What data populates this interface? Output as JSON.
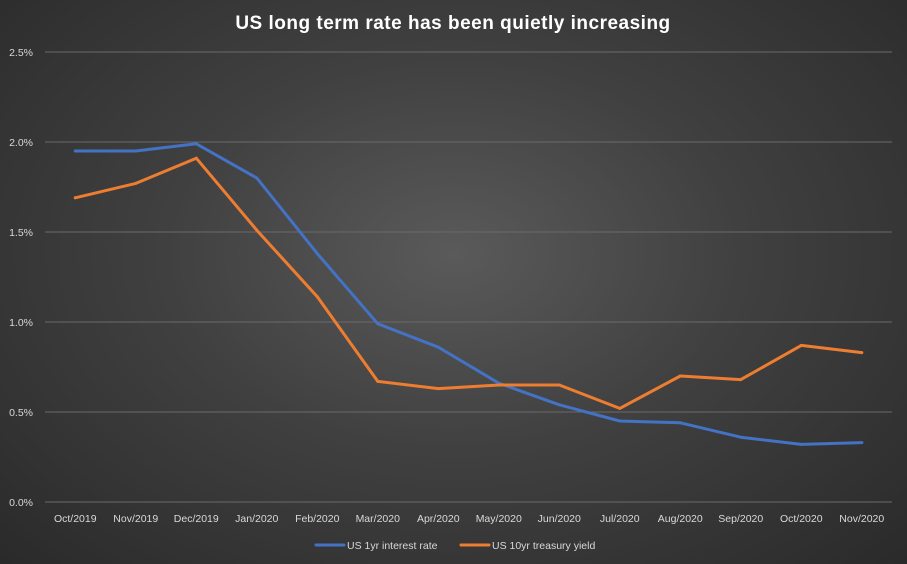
{
  "chart_data": {
    "type": "line",
    "title": "US long term rate has been quietly increasing",
    "xlabel": "",
    "ylabel": "",
    "categories": [
      "Oct/2019",
      "Nov/2019",
      "Dec/2019",
      "Jan/2020",
      "Feb/2020",
      "Mar/2020",
      "Apr/2020",
      "May/2020",
      "Jun/2020",
      "Jul/2020",
      "Aug/2020",
      "Sep/2020",
      "Oct/2020",
      "Nov/2020"
    ],
    "ylim": [
      0,
      2.5
    ],
    "yticks": [
      0,
      0.5,
      1.0,
      1.5,
      2.0,
      2.5
    ],
    "ytick_labels": [
      "0.0%",
      "0.5%",
      "1.0%",
      "1.5%",
      "2.0%",
      "2.5%"
    ],
    "grid": "horizontal",
    "legend_position": "bottom",
    "series": [
      {
        "name": "US 1yr interest rate",
        "color": "#4472C4",
        "values": [
          1.95,
          1.95,
          1.99,
          1.8,
          1.38,
          0.99,
          0.86,
          0.66,
          0.54,
          0.45,
          0.44,
          0.36,
          0.32,
          0.33
        ]
      },
      {
        "name": "US 10yr treasury yield",
        "color": "#ED7D31",
        "values": [
          1.69,
          1.77,
          1.91,
          1.51,
          1.14,
          0.67,
          0.63,
          0.65,
          0.65,
          0.52,
          0.7,
          0.68,
          0.87,
          0.83
        ]
      }
    ]
  }
}
